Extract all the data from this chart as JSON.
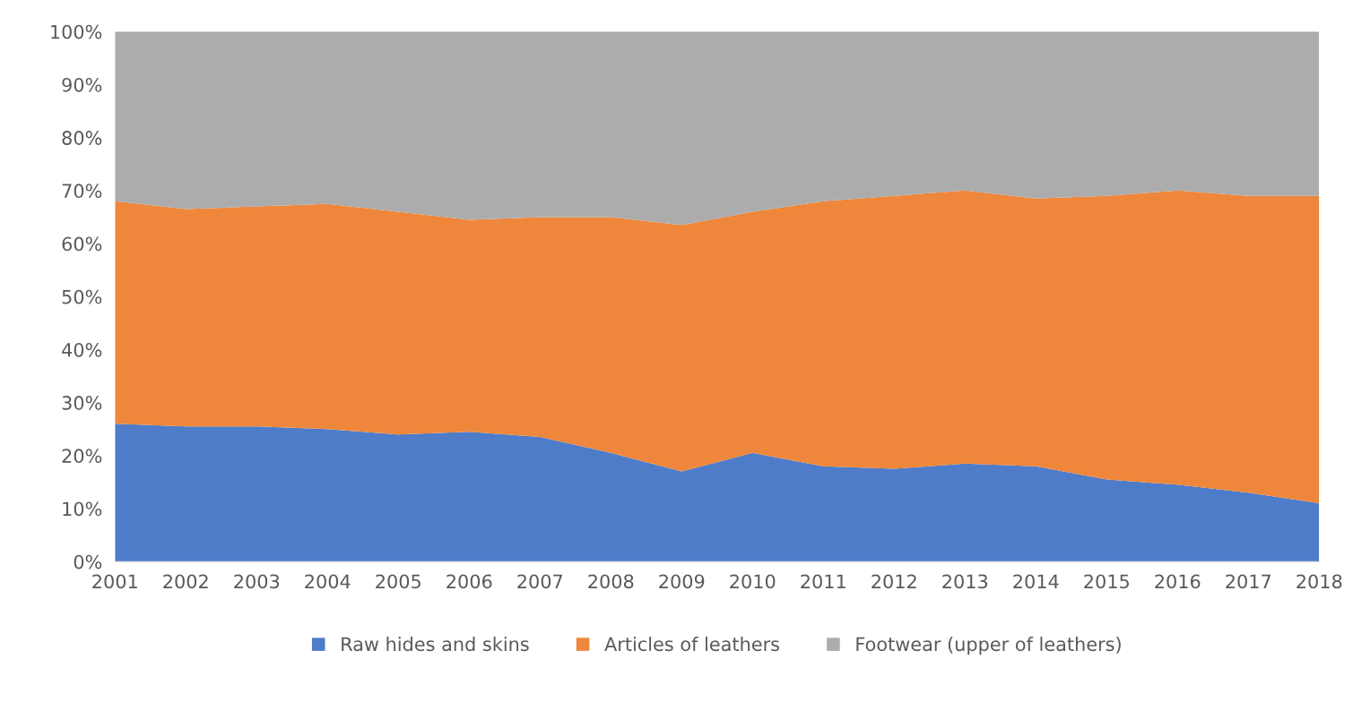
{
  "chart_data": {
    "type": "area",
    "stacked": true,
    "categories": [
      "2001",
      "2002",
      "2003",
      "2004",
      "2005",
      "2006",
      "2007",
      "2008",
      "2009",
      "2010",
      "2011",
      "2012",
      "2013",
      "2014",
      "2015",
      "2016",
      "2017",
      "2018"
    ],
    "series": [
      {
        "name": "Raw hides and skins",
        "color": "#4f7cc9",
        "values": [
          26,
          25.5,
          25.5,
          25,
          24,
          24.5,
          23.5,
          20.5,
          17,
          20.5,
          18,
          17.5,
          18.5,
          18,
          15.5,
          14.5,
          13,
          11
        ]
      },
      {
        "name": "Articles of leathers",
        "color": "#ee873b",
        "values": [
          42,
          41,
          41.5,
          42.5,
          42,
          40,
          41.5,
          44.5,
          46.5,
          45.5,
          50,
          51.5,
          51.5,
          50.5,
          53.5,
          55.5,
          56,
          58
        ]
      },
      {
        "name": "Footwear (upper of leathers)",
        "color": "#acacac",
        "values": [
          32,
          33.5,
          33,
          32.5,
          34,
          35.5,
          35,
          35,
          36.5,
          34,
          32,
          31,
          30,
          31.5,
          31,
          30,
          31,
          31
        ]
      }
    ],
    "ylim": [
      0,
      100
    ],
    "yticks": [
      {
        "value": 0,
        "label": "0%"
      },
      {
        "value": 10,
        "label": "10%"
      },
      {
        "value": 20,
        "label": "20%"
      },
      {
        "value": 30,
        "label": "30%"
      },
      {
        "value": 40,
        "label": "40%"
      },
      {
        "value": 50,
        "label": "50%"
      },
      {
        "value": 60,
        "label": "60%"
      },
      {
        "value": 70,
        "label": "70%"
      },
      {
        "value": 80,
        "label": "80%"
      },
      {
        "value": 90,
        "label": "90%"
      },
      {
        "value": 100,
        "label": "100%"
      }
    ],
    "grid": false,
    "legend": "bottom"
  }
}
